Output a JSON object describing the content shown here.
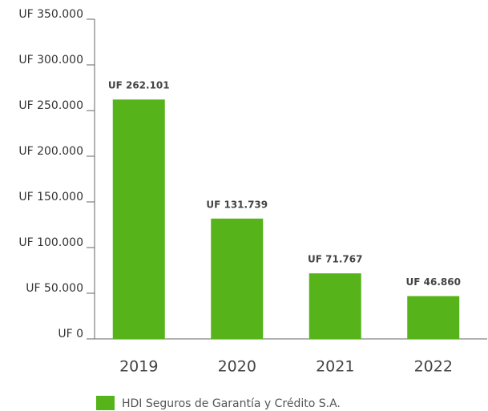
{
  "chart_data": {
    "type": "bar",
    "categories": [
      "2019",
      "2020",
      "2021",
      "2022"
    ],
    "series": [
      {
        "name": "HDI Seguros de Garantía y Crédito S.A.",
        "color": "#56b41a",
        "values": [
          262101,
          131739,
          71767,
          46860
        ],
        "value_labels": [
          "UF 262.101",
          "UF 131.739",
          "UF 71.767",
          "UF 46.860"
        ]
      }
    ],
    "ylim": [
      0,
      350000
    ],
    "yticks": [
      {
        "value": 0,
        "label": "UF 0"
      },
      {
        "value": 50000,
        "label": "UF 50.000"
      },
      {
        "value": 100000,
        "label": "UF 100.000"
      },
      {
        "value": 150000,
        "label": "UF 150.000"
      },
      {
        "value": 200000,
        "label": "UF 200.000"
      },
      {
        "value": 250000,
        "label": "UF 250.000"
      },
      {
        "value": 300000,
        "label": "UF 300.000"
      },
      {
        "value": 350000,
        "label": "UF 350.000"
      }
    ],
    "legend": "bottom"
  }
}
